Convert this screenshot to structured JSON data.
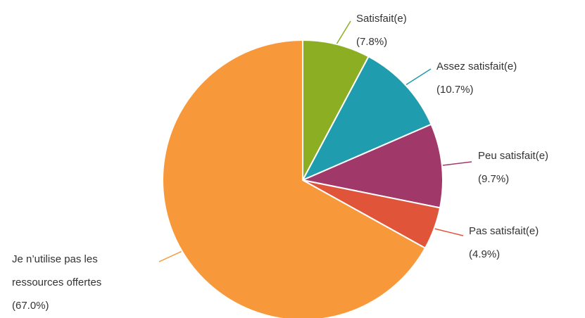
{
  "chart_data": {
    "type": "pie",
    "title": "",
    "slices": [
      {
        "label": "Satisfait(e)",
        "percent_text": "(7.8%)",
        "value": 7.8,
        "color": "#8bae23"
      },
      {
        "label": "Assez satisfait(e)",
        "percent_text": "(10.7%)",
        "value": 10.7,
        "color": "#1f9cae"
      },
      {
        "label": "Peu satisfait(e)",
        "percent_text": "(9.7%)",
        "value": 9.7,
        "color": "#a1386a"
      },
      {
        "label": "Pas satisfait(e)",
        "percent_text": "(4.9%)",
        "value": 4.9,
        "color": "#e0553a"
      },
      {
        "label_lines": [
          "Je n’utilise pas les",
          "ressources offertes"
        ],
        "percent_text": "(67.0%)",
        "value": 67.0,
        "color": "#f7993a"
      }
    ]
  }
}
